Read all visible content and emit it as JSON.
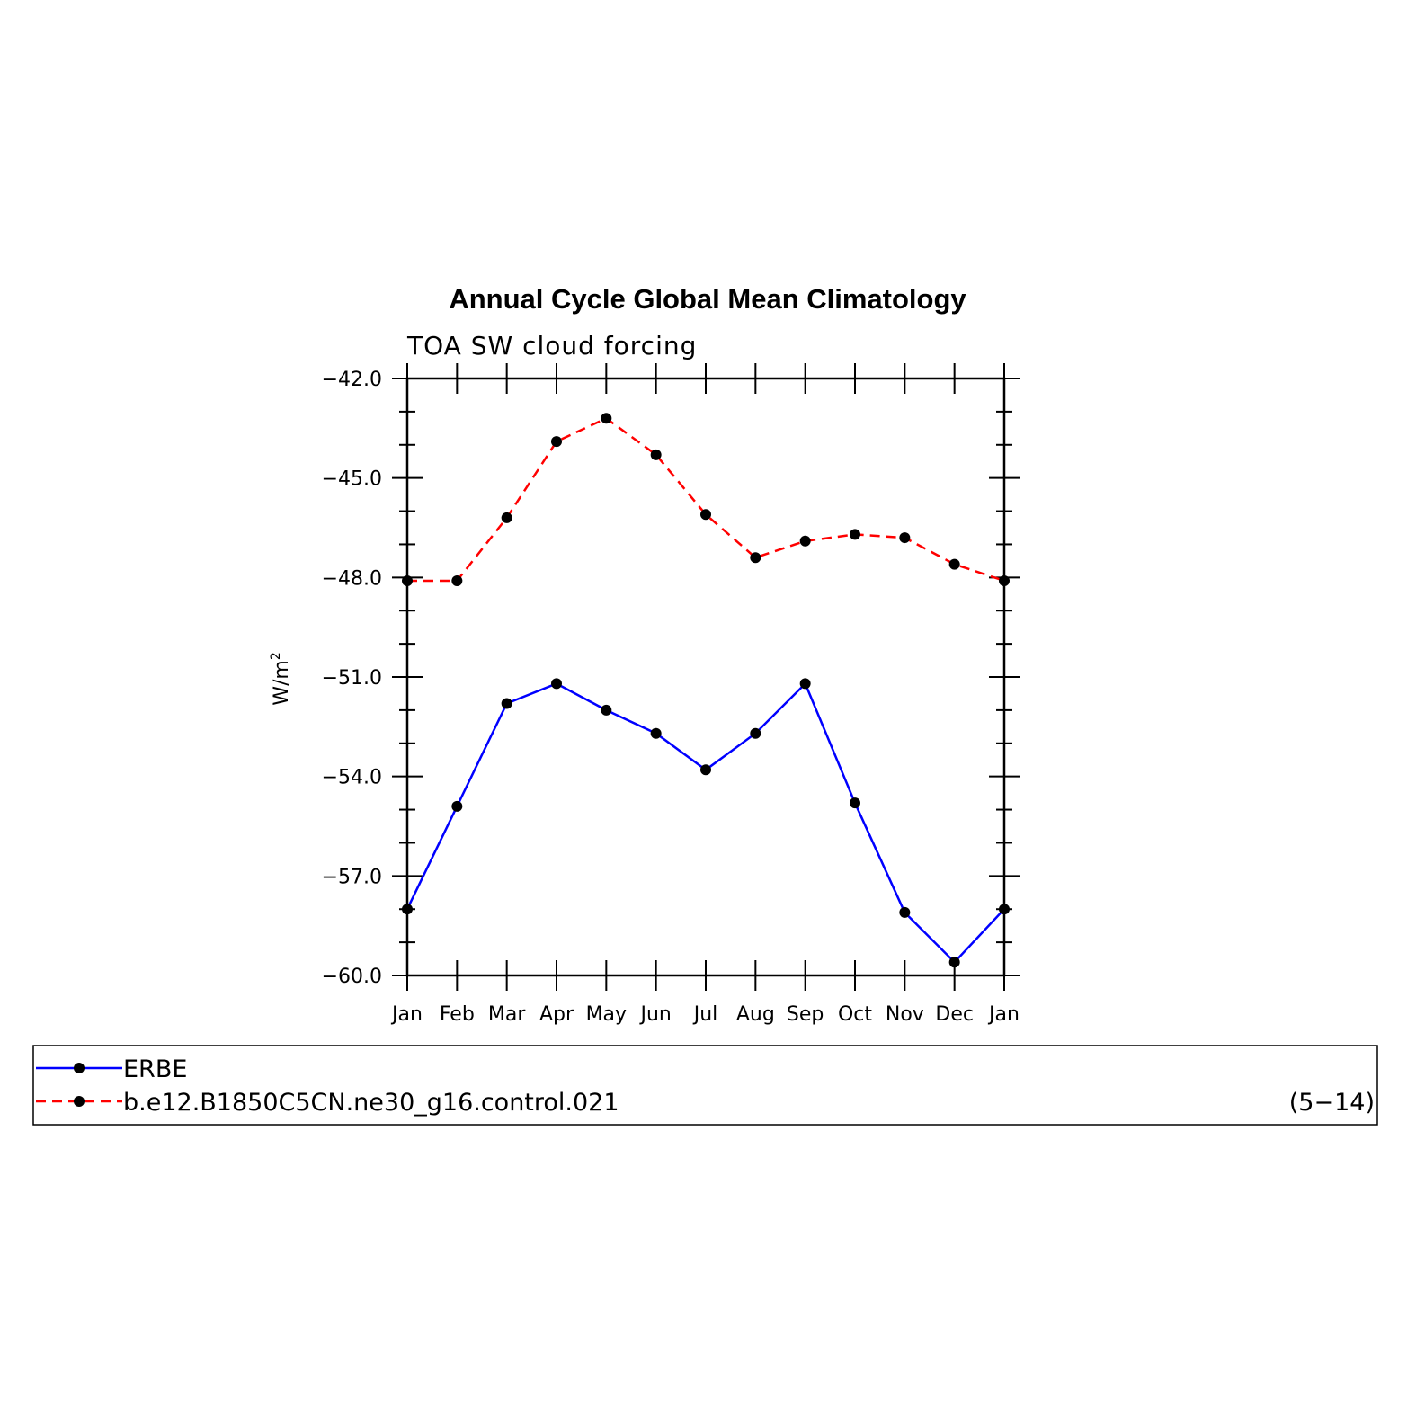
{
  "chart_data": {
    "type": "line",
    "title": "Annual Cycle Global Mean Climatology",
    "subtitle": "TOA SW cloud forcing",
    "ylabel": "W/m",
    "ylabel_sup": "2",
    "xlabel": "",
    "categories": [
      "Jan",
      "Feb",
      "Mar",
      "Apr",
      "May",
      "Jun",
      "Jul",
      "Aug",
      "Sep",
      "Oct",
      "Nov",
      "Dec",
      "Jan"
    ],
    "ylim": [
      -60.0,
      -42.0
    ],
    "yticks": [
      "-42.0",
      "-45.0",
      "-48.0",
      "-51.0",
      "-54.0",
      "-57.0",
      "-60.0"
    ],
    "grid": false,
    "legend_position": "bottom",
    "series": [
      {
        "name": "ERBE",
        "color": "#0000ff",
        "dash": "solid",
        "values": [
          -58.0,
          -54.9,
          -51.8,
          -51.2,
          -52.0,
          -52.7,
          -53.8,
          -52.7,
          -51.2,
          -54.8,
          -58.1,
          -59.6,
          -58.0
        ]
      },
      {
        "name": "b.e12.B1850C5CN.ne30_g16.control.021",
        "color": "#ff0000",
        "dash": "dashed",
        "values": [
          -48.1,
          -48.1,
          -46.2,
          -43.9,
          -43.2,
          -44.3,
          -46.1,
          -47.4,
          -46.9,
          -46.7,
          -46.8,
          -47.6,
          -48.1
        ]
      }
    ],
    "annotation": "(5−14)"
  }
}
